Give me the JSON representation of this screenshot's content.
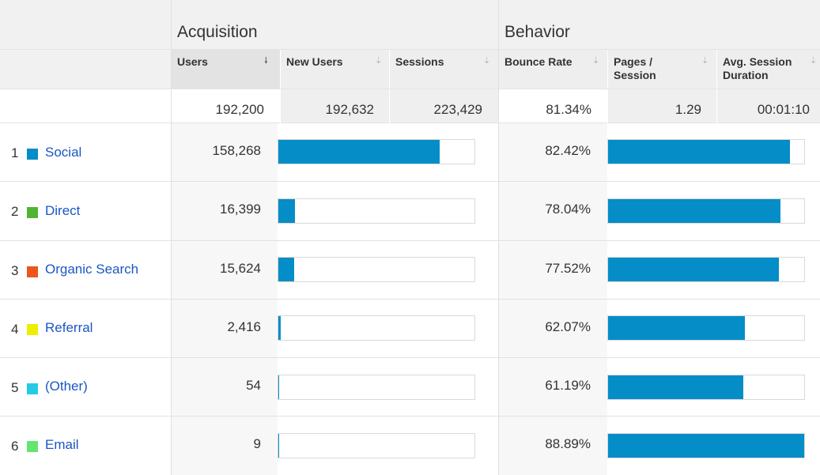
{
  "groups": {
    "acquisition": "Acquisition",
    "behavior": "Behavior"
  },
  "columns": {
    "users": "Users",
    "new_users": "New Users",
    "sessions": "Sessions",
    "bounce_rate": "Bounce Rate",
    "pages_session_line1": "Pages /",
    "pages_session_line2": "Session",
    "avg_duration_line1": "Avg. Session",
    "avg_duration_line2": "Duration",
    "sorted_arrow": "🠗",
    "sort_arrow": "⇣"
  },
  "totals": {
    "users": "192,200",
    "new_users": "192,632",
    "sessions": "223,429",
    "bounce_rate": "81.34%",
    "pages_session": "1.29",
    "avg_duration": "00:01:10"
  },
  "colors": {
    "bar": "#058dc7",
    "link": "#1a56c4"
  },
  "rows": [
    {
      "index": "1",
      "channel": "Social",
      "swatch": "#058dc7",
      "users": "158,268",
      "users_share": 0.823,
      "bounce_rate": "82.42%",
      "bounce_share": 0.927
    },
    {
      "index": "2",
      "channel": "Direct",
      "swatch": "#50b432",
      "users": "16,399",
      "users_share": 0.085,
      "bounce_rate": "78.04%",
      "bounce_share": 0.878
    },
    {
      "index": "3",
      "channel": "Organic Search",
      "swatch": "#ed561b",
      "users": "15,624",
      "users_share": 0.081,
      "bounce_rate": "77.52%",
      "bounce_share": 0.872
    },
    {
      "index": "4",
      "channel": "Referral",
      "swatch": "#edef00",
      "users": "2,416",
      "users_share": 0.013,
      "bounce_rate": "62.07%",
      "bounce_share": 0.698
    },
    {
      "index": "5",
      "channel": "(Other)",
      "swatch": "#24cbe5",
      "users": "54",
      "users_share": 0.003,
      "bounce_rate": "61.19%",
      "bounce_share": 0.688
    },
    {
      "index": "6",
      "channel": "Email",
      "swatch": "#64e572",
      "users": "9",
      "users_share": 0.002,
      "bounce_rate": "88.89%",
      "bounce_share": 1.0
    }
  ]
}
